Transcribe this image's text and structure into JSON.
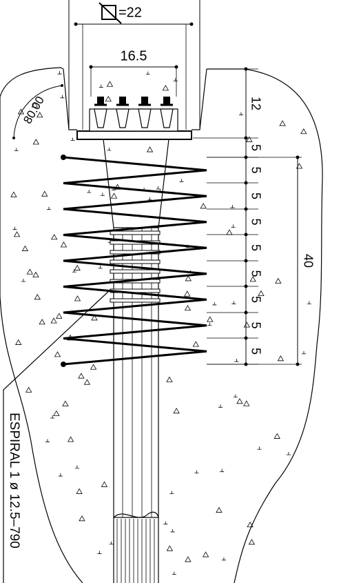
{
  "top_dimension": "=22",
  "inner_dimension": "16.5",
  "angle": "80.00",
  "chain_dimensions": [
    "12",
    "5",
    "5",
    "5",
    "5",
    "5",
    "5",
    "5",
    "5",
    "5"
  ],
  "total_dimension": "40",
  "label": "ESPIRAL 1 ø 12.5–790"
}
